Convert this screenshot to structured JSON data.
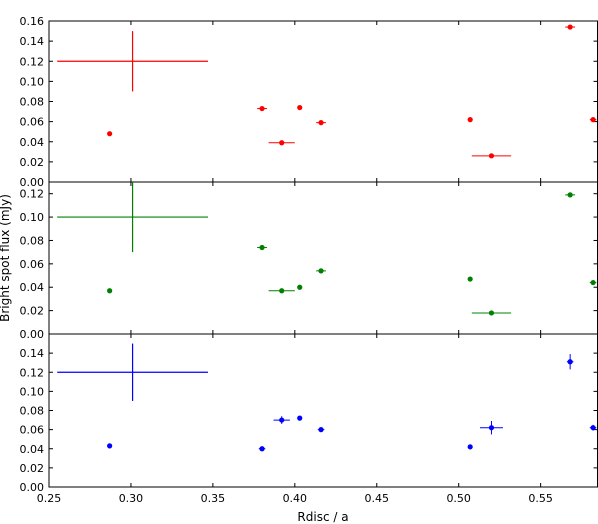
{
  "chart_data": [
    {
      "type": "scatter",
      "color": "#ff0000",
      "ylim": [
        0,
        0.16
      ],
      "yticks": [
        "0.00",
        "0.02",
        "0.04",
        "0.06",
        "0.08",
        "0.10",
        "0.12",
        "0.14",
        "0.16"
      ],
      "points": [
        {
          "x": 0.287,
          "y": 0.048,
          "xerr": 0.0,
          "yerr": 0.0
        },
        {
          "x": 0.38,
          "y": 0.073,
          "xerr": 0.003,
          "yerr": 0.0
        },
        {
          "x": 0.392,
          "y": 0.039,
          "xerr": 0.008,
          "yerr": 0.0
        },
        {
          "x": 0.403,
          "y": 0.074,
          "xerr": 0.0,
          "yerr": 0.0
        },
        {
          "x": 0.416,
          "y": 0.059,
          "xerr": 0.003,
          "yerr": 0.0
        },
        {
          "x": 0.507,
          "y": 0.062,
          "xerr": 0.0,
          "yerr": 0.0
        },
        {
          "x": 0.52,
          "y": 0.026,
          "xerr": 0.012,
          "yerr": 0.0
        },
        {
          "x": 0.568,
          "y": 0.154,
          "xerr": 0.003,
          "yerr": 0.002
        },
        {
          "x": 0.582,
          "y": 0.062,
          "xerr": 0.002,
          "yerr": 0.0
        }
      ],
      "error_cross": {
        "x": 0.301,
        "y": 0.12,
        "xerr": 0.046,
        "yerr": 0.03
      }
    },
    {
      "type": "scatter",
      "color": "#008000",
      "ylim": [
        0,
        0.13
      ],
      "yticks": [
        "0.00",
        "0.02",
        "0.04",
        "0.06",
        "0.08",
        "0.10",
        "0.12"
      ],
      "points": [
        {
          "x": 0.287,
          "y": 0.037,
          "xerr": 0.0,
          "yerr": 0.0
        },
        {
          "x": 0.38,
          "y": 0.074,
          "xerr": 0.003,
          "yerr": 0.0
        },
        {
          "x": 0.392,
          "y": 0.037,
          "xerr": 0.008,
          "yerr": 0.0
        },
        {
          "x": 0.403,
          "y": 0.04,
          "xerr": 0.0,
          "yerr": 0.0
        },
        {
          "x": 0.416,
          "y": 0.054,
          "xerr": 0.003,
          "yerr": 0.0
        },
        {
          "x": 0.507,
          "y": 0.047,
          "xerr": 0.0,
          "yerr": 0.0
        },
        {
          "x": 0.52,
          "y": 0.018,
          "xerr": 0.012,
          "yerr": 0.0
        },
        {
          "x": 0.568,
          "y": 0.119,
          "xerr": 0.003,
          "yerr": 0.002
        },
        {
          "x": 0.582,
          "y": 0.044,
          "xerr": 0.002,
          "yerr": 0.0
        }
      ],
      "error_cross": {
        "x": 0.301,
        "y": 0.1,
        "xerr": 0.046,
        "yerr": 0.03
      }
    },
    {
      "type": "scatter",
      "color": "#0000ff",
      "ylim": [
        0,
        0.16
      ],
      "yticks": [
        "0.00",
        "0.02",
        "0.04",
        "0.06",
        "0.08",
        "0.10",
        "0.12",
        "0.14"
      ],
      "points": [
        {
          "x": 0.287,
          "y": 0.043,
          "xerr": 0.0,
          "yerr": 0.0
        },
        {
          "x": 0.38,
          "y": 0.04,
          "xerr": 0.002,
          "yerr": 0.0
        },
        {
          "x": 0.392,
          "y": 0.07,
          "xerr": 0.005,
          "yerr": 0.004
        },
        {
          "x": 0.403,
          "y": 0.072,
          "xerr": 0.0,
          "yerr": 0.0
        },
        {
          "x": 0.416,
          "y": 0.06,
          "xerr": 0.002,
          "yerr": 0.0
        },
        {
          "x": 0.507,
          "y": 0.042,
          "xerr": 0.0,
          "yerr": 0.0
        },
        {
          "x": 0.52,
          "y": 0.062,
          "xerr": 0.007,
          "yerr": 0.007
        },
        {
          "x": 0.568,
          "y": 0.131,
          "xerr": 0.002,
          "yerr": 0.008
        },
        {
          "x": 0.582,
          "y": 0.062,
          "xerr": 0.002,
          "yerr": 0.003
        }
      ],
      "error_cross": {
        "x": 0.301,
        "y": 0.12,
        "xerr": 0.046,
        "yerr": 0.03
      }
    }
  ],
  "xaxis": {
    "xlim": [
      0.25,
      0.585
    ],
    "ticks": [
      "0.25",
      "0.30",
      "0.35",
      "0.40",
      "0.45",
      "0.50",
      "0.55"
    ],
    "label": "Rdisc / a"
  },
  "ylabel": "Bright spot flux (mJy)"
}
